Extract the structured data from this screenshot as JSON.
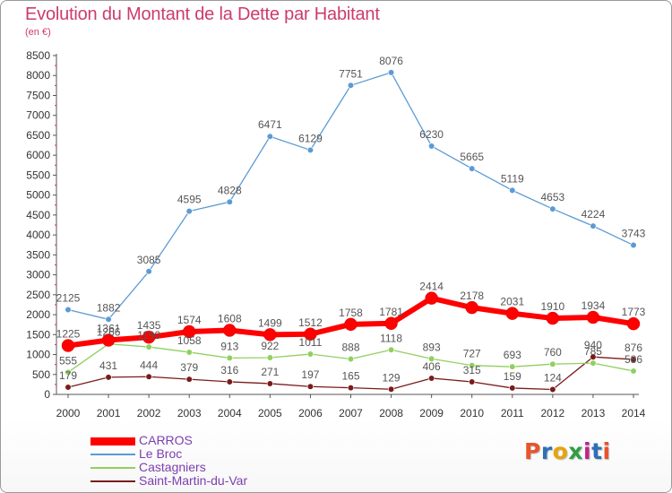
{
  "title": "Evolution du Montant de la Dette par Habitant",
  "subtitle": "(en €)",
  "logo": {
    "text": "Proxiti",
    "colors": [
      "#e8542b",
      "#2f6fb5",
      "#e8a30b",
      "#2f9e44",
      "#c2228a",
      "#2f6fb5",
      "#e8542b"
    ]
  },
  "chart_data": {
    "type": "line",
    "x": [
      "2000",
      "2001",
      "2002",
      "2003",
      "2004",
      "2005",
      "2006",
      "2007",
      "2008",
      "2009",
      "2010",
      "2011",
      "2012",
      "2013",
      "2014"
    ],
    "ylim": [
      0,
      8500
    ],
    "yticks": [
      0,
      500,
      1000,
      1500,
      2000,
      2500,
      3000,
      3500,
      4000,
      4500,
      5000,
      5500,
      6000,
      6500,
      7000,
      7500,
      8000,
      8500
    ],
    "grid": false,
    "legend": "bottom-left",
    "series": [
      {
        "name": "CARROS",
        "color": "#ff0000",
        "values": [
          1225,
          1361,
          1435,
          1574,
          1608,
          1499,
          1512,
          1758,
          1781,
          2414,
          2178,
          2031,
          1910,
          1934,
          1773
        ]
      },
      {
        "name": "Le Broc",
        "color": "#5b9bd5",
        "values": [
          2125,
          1882,
          3085,
          4595,
          4828,
          6471,
          6129,
          7751,
          8076,
          6230,
          5665,
          5119,
          4653,
          4224,
          3743
        ]
      },
      {
        "name": "Castagniers",
        "color": "#90d060",
        "values": [
          555,
          1266,
          1190,
          1058,
          913,
          922,
          1011,
          888,
          1118,
          893,
          727,
          693,
          760,
          785,
          586
        ]
      },
      {
        "name": "Saint-Martin-du-Var",
        "color": "#7a1b1b",
        "values": [
          179,
          431,
          444,
          379,
          316,
          271,
          197,
          165,
          129,
          406,
          315,
          159,
          124,
          940,
          876
        ]
      }
    ]
  }
}
